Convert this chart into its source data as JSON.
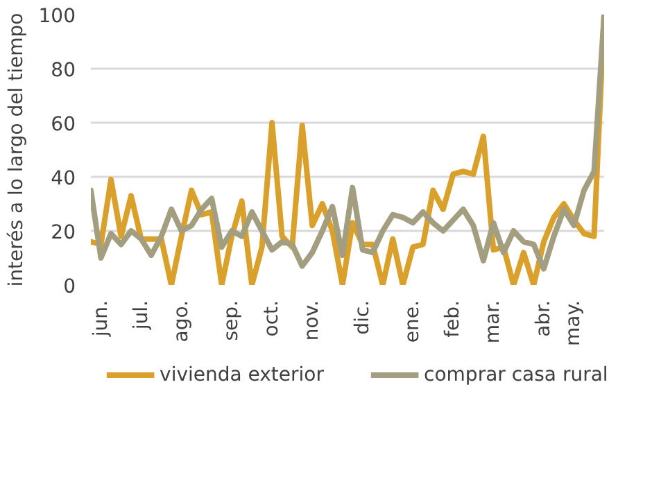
{
  "chart_data": {
    "type": "line",
    "ylabel": "interés a lo largo del tiempo",
    "categories": [
      null,
      "jun.",
      null,
      null,
      null,
      "jul.",
      null,
      null,
      null,
      "ago.",
      null,
      null,
      null,
      null,
      "sep.",
      null,
      null,
      null,
      "oct.",
      null,
      null,
      null,
      "nov.",
      null,
      null,
      null,
      null,
      "dic.",
      null,
      null,
      null,
      null,
      "ene.",
      null,
      null,
      null,
      "feb.",
      null,
      null,
      null,
      "mar.",
      null,
      null,
      null,
      null,
      "abr.",
      null,
      null,
      "may.",
      null,
      null,
      null
    ],
    "ylim": [
      0,
      100
    ],
    "yticks": [
      0,
      20,
      40,
      60,
      80,
      100
    ],
    "grid": "y",
    "legend": "bottom",
    "line_style": "solid",
    "marker": "none",
    "series": [
      {
        "name": "vivienda exterior",
        "color": "#d9a02c",
        "values": [
          16,
          15,
          39,
          18,
          33,
          17,
          17,
          17,
          0,
          18,
          35,
          26,
          27,
          0,
          18,
          31,
          0,
          14,
          60,
          18,
          14,
          59,
          22,
          30,
          20,
          0,
          23,
          15,
          15,
          0,
          17,
          0,
          14,
          15,
          35,
          28,
          41,
          42,
          41,
          55,
          13,
          14,
          0,
          12,
          0,
          16,
          25,
          30,
          24,
          19,
          18,
          100
        ]
      },
      {
        "name": "comprar casa rural",
        "color": "#a49e80",
        "values": [
          35,
          10,
          19,
          15,
          20,
          17,
          11,
          18,
          28,
          20,
          22,
          28,
          32,
          14,
          20,
          18,
          27,
          20,
          13,
          16,
          15,
          7,
          12,
          20,
          29,
          11,
          36,
          13,
          12,
          20,
          26,
          25,
          23,
          27,
          23,
          20,
          24,
          28,
          22,
          9,
          23,
          12,
          20,
          16,
          15,
          6,
          18,
          28,
          22,
          35,
          42,
          100
        ]
      }
    ]
  }
}
